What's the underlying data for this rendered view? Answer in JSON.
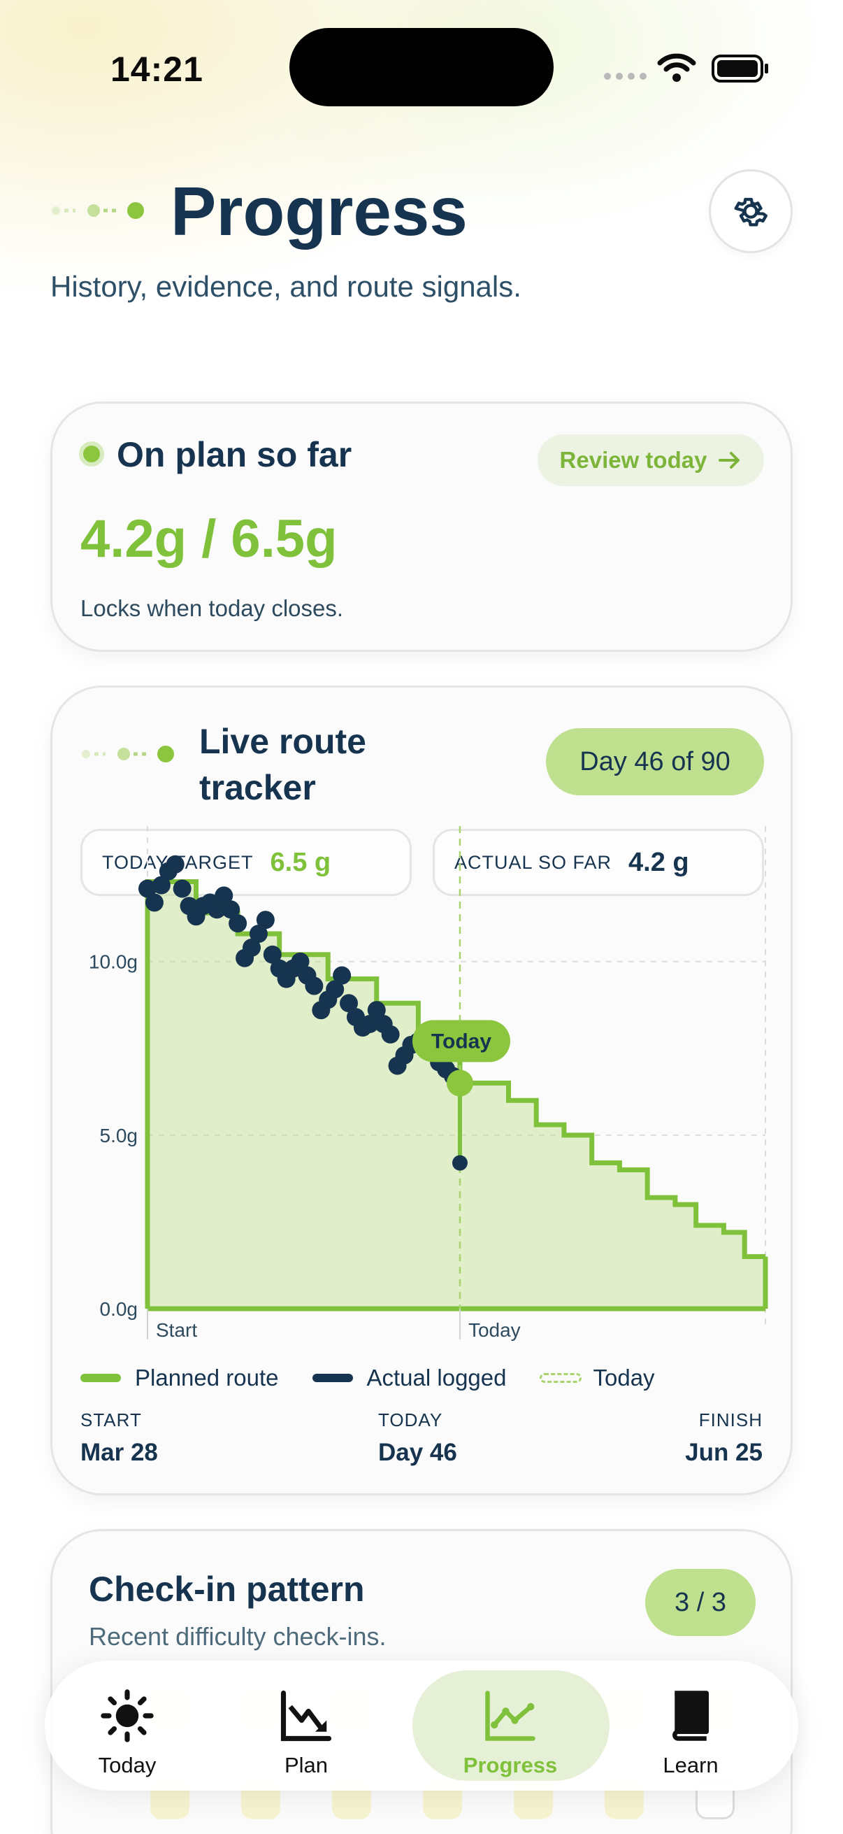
{
  "status_bar": {
    "time": "14:21"
  },
  "header": {
    "title": "Progress",
    "subtitle": "History, evidence, and route signals."
  },
  "summary_card": {
    "label": "On plan so far",
    "review_label": "Review today",
    "value": "4.2g / 6.5g",
    "note": "Locks when today closes."
  },
  "tracker_card": {
    "title": "Live route tracker",
    "day_pill": "Day 46 of 90",
    "stats": {
      "target_label": "TODAY TARGET",
      "target_value": "6.5 g",
      "actual_label": "ACTUAL SO FAR",
      "actual_value": "4.2 g"
    },
    "legend": {
      "planned": "Planned route",
      "actual": "Actual logged",
      "today": "Today"
    },
    "footer": {
      "start_label": "START",
      "start_value": "Mar 28",
      "today_label": "TODAY",
      "today_value": "Day 46",
      "finish_label": "FINISH",
      "finish_value": "Jun 25"
    }
  },
  "chart_data": {
    "type": "line",
    "y_ticks": [
      "0.0g",
      "5.0g",
      "10.0g"
    ],
    "ylim": [
      0,
      13.5
    ],
    "x_labels": [
      "Start",
      "Today"
    ],
    "xlim": [
      1,
      90
    ],
    "today_day": 46,
    "today_marker_label": "Today",
    "today_planned": 6.5,
    "today_actual": 4.2,
    "series": [
      {
        "name": "Planned route",
        "color": "#7fc13b",
        "x": [
          1,
          5,
          8,
          10,
          14,
          17,
          20,
          24,
          27,
          30,
          34,
          37,
          40,
          43,
          46,
          50,
          53,
          57,
          61,
          65,
          69,
          73,
          77,
          80,
          84,
          87,
          90
        ],
        "y": [
          12.3,
          12.3,
          11.4,
          11.4,
          10.8,
          10.8,
          10.2,
          10.2,
          9.5,
          9.5,
          8.8,
          8.8,
          8.1,
          8.1,
          6.5,
          6.5,
          6.0,
          5.3,
          5.0,
          4.2,
          4.0,
          3.2,
          3.0,
          2.4,
          2.2,
          1.5,
          1.5
        ]
      },
      {
        "name": "Actual logged",
        "color": "#16344f",
        "x": [
          1,
          2,
          3,
          4,
          5,
          6,
          7,
          8,
          9,
          10,
          11,
          12,
          13,
          14,
          15,
          16,
          17,
          18,
          19,
          20,
          21,
          22,
          23,
          24,
          25,
          26,
          27,
          28,
          29,
          30,
          31,
          32,
          33,
          34,
          35,
          36,
          37,
          38,
          39,
          40,
          41,
          42,
          43,
          44,
          45
        ],
        "y": [
          12.1,
          11.7,
          12.2,
          12.6,
          12.8,
          12.1,
          11.6,
          11.3,
          11.6,
          11.7,
          11.5,
          11.9,
          11.5,
          11.1,
          10.1,
          10.4,
          10.8,
          11.2,
          10.2,
          9.8,
          9.5,
          9.8,
          10.0,
          9.6,
          9.3,
          8.6,
          8.9,
          9.2,
          9.6,
          8.8,
          8.4,
          8.1,
          8.2,
          8.6,
          8.2,
          7.9,
          7.0,
          7.3,
          7.6,
          7.7,
          7.9,
          7.5,
          7.1,
          6.9,
          6.7
        ]
      }
    ]
  },
  "checkin_card": {
    "title": "Check-in pattern",
    "subtitle": "Recent difficulty check-ins.",
    "pill": "3 / 3"
  },
  "tabbar": {
    "items": [
      {
        "label": "Today",
        "icon": "sun-icon"
      },
      {
        "label": "Plan",
        "icon": "trend-down-icon"
      },
      {
        "label": "Progress",
        "icon": "line-chart-icon",
        "active": true
      },
      {
        "label": "Learn",
        "icon": "book-icon"
      }
    ]
  },
  "colors": {
    "accent_green": "#7fc13b",
    "navy": "#16344f",
    "pill_green": "#bfe08f"
  }
}
